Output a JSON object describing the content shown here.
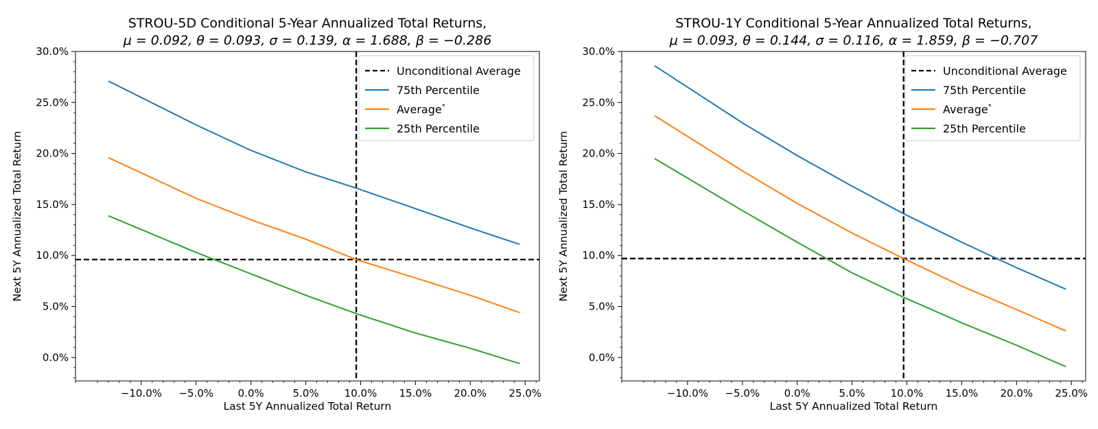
{
  "figure": {
    "width": 1600,
    "height": 625
  },
  "chart_data": [
    {
      "type": "line",
      "title": "STROU-5D Conditional 5-Year Annualized Total Returns,",
      "subtitle": "μ = 0.092, θ = 0.093, σ = 0.139, α = 1.688, β = −0.286",
      "xlabel": "Last 5Y Annualized Total Return",
      "ylabel": "Next 5Y Annualized Total Return",
      "xlim": [
        -16.0,
        26.3
      ],
      "ylim": [
        -2.3,
        30.0
      ],
      "xticks": [
        -10,
        -5,
        0,
        5,
        10,
        15,
        20,
        25
      ],
      "xtick_labels": [
        "−10.0%",
        "−5.0%",
        "0.0%",
        "5.0%",
        "10.0%",
        "15.0%",
        "20.0%",
        "25.0%"
      ],
      "yticks": [
        0,
        5,
        10,
        15,
        20,
        25,
        30
      ],
      "ytick_labels": [
        "0.0%",
        "5.0%",
        "10.0%",
        "15.0%",
        "20.0%",
        "25.0%",
        "30.0%"
      ],
      "reference_lines": {
        "vertical_x": 9.6,
        "horizontal_y": 9.6,
        "style": "dashed",
        "color": "#000000"
      },
      "legend": {
        "placement": "top-right",
        "entries": [
          {
            "label": "Unconditional Average",
            "style": "dashed",
            "color": "#000000"
          },
          {
            "label": "75th Percentile",
            "style": "solid",
            "color": "#1f77b4"
          },
          {
            "label": "Average*",
            "style": "solid",
            "color": "#ff7f0e"
          },
          {
            "label": "25th Percentile",
            "style": "solid",
            "color": "#2ca02c"
          }
        ]
      },
      "series": [
        {
          "name": "75th Percentile",
          "color": "#1f77b4",
          "x": [
            -13,
            -5,
            0,
            5,
            9.6,
            15,
            20,
            24.5
          ],
          "values": [
            27.1,
            22.8,
            20.3,
            18.2,
            16.6,
            14.6,
            12.7,
            11.1
          ]
        },
        {
          "name": "Average*",
          "color": "#ff7f0e",
          "x": [
            -13,
            -5,
            0,
            5,
            9.6,
            15,
            20,
            24.5
          ],
          "values": [
            19.6,
            15.6,
            13.5,
            11.6,
            9.6,
            7.8,
            6.1,
            4.4
          ]
        },
        {
          "name": "25th Percentile",
          "color": "#2ca02c",
          "x": [
            -13,
            -5,
            0,
            5,
            9.6,
            15,
            20,
            24.5
          ],
          "values": [
            13.9,
            10.3,
            8.2,
            6.1,
            4.3,
            2.4,
            0.9,
            -0.6
          ]
        }
      ]
    },
    {
      "type": "line",
      "title": "STROU-1Y Conditional 5-Year Annualized Total Returns,",
      "subtitle": "μ = 0.093, θ = 0.144, σ = 0.116, α = 1.859, β = −0.707",
      "xlabel": "Last 5Y Annualized Total Return",
      "ylabel": "Next 5Y Annualized Total Return",
      "xlim": [
        -16.0,
        26.3
      ],
      "ylim": [
        -2.3,
        30.0
      ],
      "xticks": [
        -10,
        -5,
        0,
        5,
        10,
        15,
        20,
        25
      ],
      "xtick_labels": [
        "−10.0%",
        "−5.0%",
        "0.0%",
        "5.0%",
        "10.0%",
        "15.0%",
        "20.0%",
        "25.0%"
      ],
      "yticks": [
        0,
        5,
        10,
        15,
        20,
        25,
        30
      ],
      "ytick_labels": [
        "0.0%",
        "5.0%",
        "10.0%",
        "15.0%",
        "20.0%",
        "25.0%",
        "30.0%"
      ],
      "reference_lines": {
        "vertical_x": 9.7,
        "horizontal_y": 9.7,
        "style": "dashed",
        "color": "#000000"
      },
      "legend": {
        "placement": "top-right",
        "entries": [
          {
            "label": "Unconditional Average",
            "style": "dashed",
            "color": "#000000"
          },
          {
            "label": "75th Percentile",
            "style": "solid",
            "color": "#1f77b4"
          },
          {
            "label": "Average*",
            "style": "solid",
            "color": "#ff7f0e"
          },
          {
            "label": "25th Percentile",
            "style": "solid",
            "color": "#2ca02c"
          }
        ]
      },
      "series": [
        {
          "name": "75th Percentile",
          "color": "#1f77b4",
          "x": [
            -13,
            -5,
            0,
            5,
            9.7,
            15,
            20,
            24.5
          ],
          "values": [
            28.6,
            23.0,
            19.8,
            16.8,
            14.1,
            11.3,
            8.8,
            6.7
          ]
        },
        {
          "name": "Average*",
          "color": "#ff7f0e",
          "x": [
            -13,
            -5,
            0,
            5,
            9.7,
            15,
            20,
            24.5
          ],
          "values": [
            23.7,
            18.3,
            15.1,
            12.2,
            9.7,
            7.0,
            4.7,
            2.6
          ]
        },
        {
          "name": "25th Percentile",
          "color": "#2ca02c",
          "x": [
            -13,
            -5,
            0,
            5,
            9.7,
            15,
            20,
            24.5
          ],
          "values": [
            19.5,
            14.4,
            11.3,
            8.3,
            5.9,
            3.4,
            1.2,
            -0.9
          ]
        }
      ]
    }
  ]
}
